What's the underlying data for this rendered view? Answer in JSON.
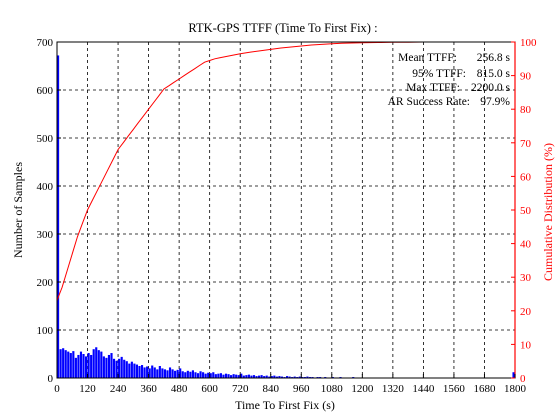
{
  "colors": {
    "histogram": "#0000ff",
    "cumulative": "#ff0000",
    "axis_left": "#000000",
    "axis_right": "#ff0000"
  },
  "chart_data": {
    "type": "bar",
    "title": "RTK-GPS TTFF (Time To First Fix) :",
    "xlabel": "Time To First Fix (s)",
    "ylabel": "Number of Samples",
    "y2label": "Cumulative Distribution (%)",
    "xlim": [
      0,
      1800
    ],
    "ylim": [
      0,
      700
    ],
    "y2lim": [
      0,
      100
    ],
    "grid": true,
    "xticks": [
      "0",
      "120",
      "240",
      "360",
      "480",
      "600",
      "720",
      "840",
      "960",
      "1080",
      "1200",
      "1320",
      "1440",
      "1560",
      "1680",
      "1800"
    ],
    "yticks": [
      "0",
      "100",
      "200",
      "300",
      "400",
      "500",
      "600",
      "700"
    ],
    "y2ticks": [
      "0",
      "10",
      "20",
      "30",
      "40",
      "50",
      "60",
      "70",
      "80",
      "90",
      "100"
    ],
    "annotations": [
      {
        "label": "Mean TTFF:",
        "value": "256.8 s"
      },
      {
        "label": "95% TTFF:",
        "value": "815.0 s"
      },
      {
        "label": "Max TTFF:",
        "value": "2200.0 s"
      },
      {
        "label": "AR Success Rate:",
        "value": "97.9%"
      }
    ],
    "series": [
      {
        "type": "bar",
        "bin_width": 10,
        "x": [
          0,
          10,
          20,
          30,
          40,
          50,
          60,
          70,
          80,
          90,
          100,
          110,
          120,
          130,
          140,
          150,
          160,
          170,
          180,
          190,
          200,
          210,
          220,
          230,
          240,
          250,
          260,
          270,
          280,
          290,
          300,
          310,
          320,
          330,
          340,
          350,
          360,
          370,
          380,
          390,
          400,
          410,
          420,
          430,
          440,
          450,
          460,
          470,
          480,
          490,
          500,
          510,
          520,
          530,
          540,
          550,
          560,
          570,
          580,
          590,
          600,
          610,
          620,
          630,
          640,
          650,
          660,
          670,
          680,
          690,
          700,
          710,
          720,
          730,
          740,
          750,
          760,
          770,
          780,
          790,
          800,
          810,
          820,
          830,
          840,
          850,
          860,
          870,
          880,
          890,
          900,
          910,
          920,
          930,
          940,
          950,
          960,
          970,
          980,
          990,
          1000,
          1010,
          1020,
          1030,
          1040,
          1050,
          1060,
          1070,
          1080,
          1090,
          1100,
          1110,
          1120,
          1130,
          1140,
          1150,
          1160,
          1170,
          1180,
          1190,
          1200,
          1210,
          1220,
          1230,
          1240,
          1250,
          1260,
          1270,
          1280,
          1290,
          1300,
          1310,
          1320,
          1330,
          1340,
          1350,
          1360,
          1370,
          1380,
          1390,
          1400,
          1410,
          1420,
          1430,
          1440,
          1450,
          1790
        ],
        "values": [
          672,
          60,
          62,
          58,
          55,
          52,
          56,
          42,
          48,
          55,
          50,
          45,
          52,
          48,
          60,
          64,
          58,
          55,
          45,
          42,
          48,
          52,
          40,
          36,
          40,
          44,
          38,
          35,
          30,
          34,
          30,
          28,
          25,
          27,
          22,
          24,
          20,
          26,
          22,
          18,
          25,
          20,
          18,
          16,
          22,
          18,
          15,
          17,
          20,
          14,
          12,
          15,
          13,
          16,
          12,
          10,
          14,
          12,
          9,
          11,
          10,
          12,
          8,
          9,
          10,
          7,
          9,
          8,
          6,
          8,
          7,
          6,
          9,
          5,
          6,
          7,
          5,
          6,
          4,
          5,
          6,
          4,
          5,
          3,
          4,
          5,
          3,
          4,
          3,
          2,
          4,
          3,
          2,
          3,
          2,
          3,
          2,
          2,
          3,
          2,
          2,
          1,
          2,
          2,
          1,
          2,
          1,
          1,
          2,
          1,
          1,
          2,
          1,
          1,
          1,
          1,
          2,
          1,
          1,
          1,
          1,
          1,
          1,
          1,
          1,
          1,
          1,
          1,
          1,
          1,
          1,
          1,
          1,
          1,
          1,
          1,
          1,
          1,
          1,
          1,
          1,
          1,
          1,
          1,
          1,
          1,
          12
        ]
      },
      {
        "type": "line",
        "x": [
          0,
          10,
          20,
          40,
          60,
          80,
          100,
          120,
          140,
          160,
          180,
          200,
          220,
          240,
          260,
          280,
          300,
          320,
          340,
          360,
          380,
          400,
          420,
          440,
          460,
          480,
          500,
          520,
          540,
          560,
          580,
          600,
          620,
          640,
          660,
          680,
          700,
          720,
          760,
          800,
          840,
          880,
          920,
          960,
          1000,
          1040,
          1080,
          1120,
          1160,
          1200,
          1260,
          1320,
          1380,
          1440,
          1800
        ],
        "values": [
          23,
          25,
          27,
          32,
          37,
          42,
          46,
          50,
          53,
          56,
          59,
          62,
          65,
          68,
          70,
          72,
          74,
          76,
          78,
          80,
          82,
          84,
          86,
          87,
          88,
          89,
          90,
          91,
          92,
          93,
          94,
          94.5,
          95,
          95.3,
          95.6,
          95.9,
          96.2,
          96.5,
          97,
          97.4,
          97.8,
          98.2,
          98.5,
          98.8,
          99.1,
          99.3,
          99.5,
          99.6,
          99.7,
          99.8,
          99.85,
          99.9,
          99.95,
          100,
          100
        ]
      }
    ]
  }
}
